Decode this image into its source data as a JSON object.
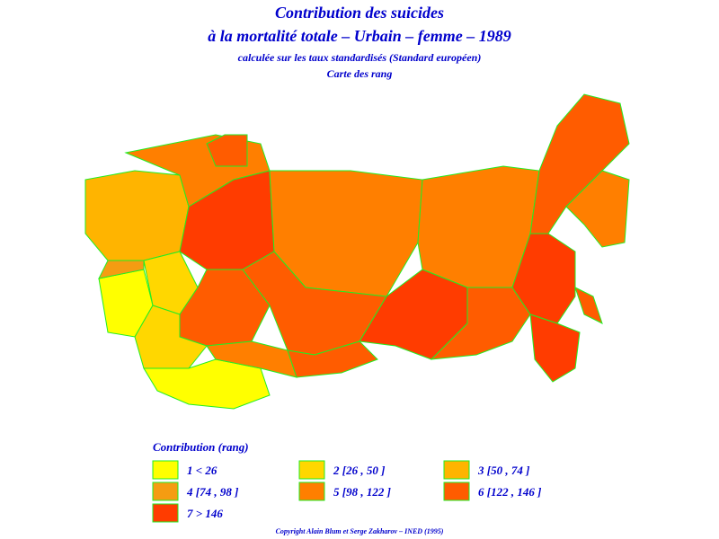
{
  "header": {
    "title": "Contribution des suicides",
    "subtitle": "à la mortalité totale  –  Urbain  –  femme  –  1989",
    "note": "calculée sur les taux standardisés (Standard européen)",
    "map_kind": "Carte des rang"
  },
  "legend": {
    "title": "Contribution (rang)",
    "items": [
      {
        "label": "1  <  26",
        "color": "#ffff00"
      },
      {
        "label": "2 [26 , 50 ]",
        "color": "#ffd700"
      },
      {
        "label": "3 [50 , 74 ]",
        "color": "#ffb400"
      },
      {
        "label": "4 [74 , 98 ]",
        "color": "#f59c12"
      },
      {
        "label": "5 [98 , 122 ]",
        "color": "#ff7f00"
      },
      {
        "label": "6 [122 , 146 ]",
        "color": "#ff5c00"
      },
      {
        "label": "7  >  146",
        "color": "#ff3c00"
      }
    ]
  },
  "footer": {
    "copyright": "Copyright Alain Blum et Serge Zakharov  –  INED (1995)"
  }
}
